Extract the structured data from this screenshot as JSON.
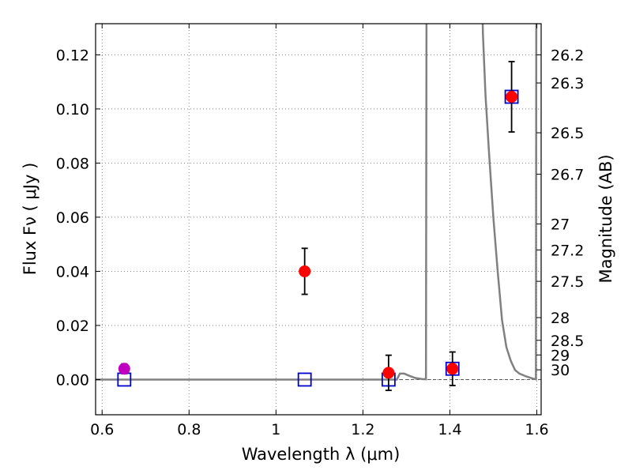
{
  "chart_data": {
    "type": "scatter",
    "xlabel": "Wavelength  λ (μm)",
    "ylabel": "Flux  Fν  ( μJy )",
    "ylabel_right": "Magnitude (AB)",
    "xlim": [
      0.585,
      1.61
    ],
    "ylim": [
      -0.013,
      0.1315
    ],
    "grid": true,
    "x_ticks": [
      {
        "value": 0.6,
        "label": "0.6"
      },
      {
        "value": 0.8,
        "label": "0.8"
      },
      {
        "value": 1.0,
        "label": "1"
      },
      {
        "value": 1.2,
        "label": "1.2"
      },
      {
        "value": 1.4,
        "label": "1.4"
      },
      {
        "value": 1.6,
        "label": "1.6"
      }
    ],
    "y_ticks": [
      {
        "value": 0.0,
        "label": "0.00"
      },
      {
        "value": 0.02,
        "label": "0.02"
      },
      {
        "value": 0.04,
        "label": "0.04"
      },
      {
        "value": 0.06,
        "label": "0.06"
      },
      {
        "value": 0.08,
        "label": "0.08"
      },
      {
        "value": 0.1,
        "label": "0.10"
      },
      {
        "value": 0.12,
        "label": "0.12"
      }
    ],
    "mag_ticks": [
      {
        "flux": 0.12,
        "label": "26.2"
      },
      {
        "flux": 0.1096,
        "label": "26.3"
      },
      {
        "flux": 0.0912,
        "label": "26.5"
      },
      {
        "flux": 0.0759,
        "label": "26.7"
      },
      {
        "flux": 0.0575,
        "label": "27"
      },
      {
        "flux": 0.0479,
        "label": "27.2"
      },
      {
        "flux": 0.0363,
        "label": "27.5"
      },
      {
        "flux": 0.0229,
        "label": "28"
      },
      {
        "flux": 0.0145,
        "label": "28.5"
      },
      {
        "flux": 0.0091,
        "label": "29"
      },
      {
        "flux": 0.0036,
        "label": "30"
      }
    ],
    "observed": [
      {
        "x": 0.651,
        "y": 0.004,
        "err": 0.0018,
        "color": "#bf00bf"
      },
      {
        "x": 1.066,
        "y": 0.04,
        "err": 0.0085,
        "color": "#ff0000"
      },
      {
        "x": 1.259,
        "y": 0.0025,
        "err": 0.0065,
        "color": "#ff0000"
      },
      {
        "x": 1.406,
        "y": 0.004,
        "err": 0.0062,
        "color": "#ff0000"
      },
      {
        "x": 1.542,
        "y": 0.1045,
        "err": 0.013,
        "color": "#ff0000"
      }
    ],
    "model_points": [
      {
        "x": 0.651,
        "y": 0.0
      },
      {
        "x": 1.066,
        "y": 0.0
      },
      {
        "x": 1.259,
        "y": 0.0
      },
      {
        "x": 1.406,
        "y": 0.004
      },
      {
        "x": 1.542,
        "y": 0.1045
      }
    ],
    "model_spectrum": [
      [
        0.585,
        0.0
      ],
      [
        1.26,
        0.0
      ],
      [
        1.27,
        0.0
      ],
      [
        1.278,
        0.0
      ],
      [
        1.285,
        0.0022
      ],
      [
        1.295,
        0.0022
      ],
      [
        1.305,
        0.0015
      ],
      [
        1.32,
        0.0006
      ],
      [
        1.335,
        0.0002
      ],
      [
        1.345,
        0.0001
      ],
      [
        1.3465,
        0.16
      ],
      [
        1.472,
        0.16
      ],
      [
        1.476,
        0.128
      ],
      [
        1.482,
        0.105
      ],
      [
        1.49,
        0.084
      ],
      [
        1.5,
        0.06
      ],
      [
        1.51,
        0.04
      ],
      [
        1.52,
        0.022
      ],
      [
        1.53,
        0.012
      ],
      [
        1.54,
        0.007
      ],
      [
        1.55,
        0.0035
      ],
      [
        1.56,
        0.0022
      ],
      [
        1.575,
        0.0012
      ],
      [
        1.59,
        0.0004
      ],
      [
        1.598,
        0.0001
      ],
      [
        1.599,
        0.16
      ]
    ],
    "colors": {
      "model_line": "#808080",
      "model_marker": "#0000cc",
      "errorbar": "#000000",
      "grid": "#888888",
      "dashed_baseline": "#555555"
    }
  }
}
